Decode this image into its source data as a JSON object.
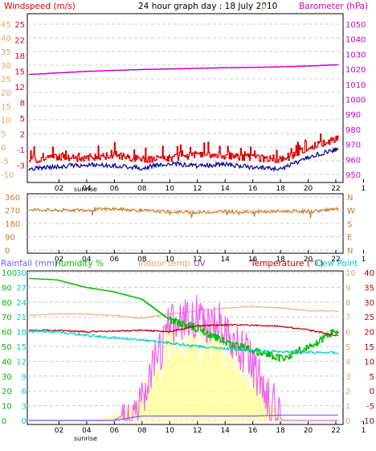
{
  "colors": {
    "windspeed": "#dd0000",
    "windavg": "#000099",
    "barometer": "#cc00cc",
    "direction": "#cc7722",
    "humidity": "#00bb00",
    "indoor": "#f0a060",
    "uv": "#9944cc",
    "temperature": "#bb0000",
    "dewpoint": "#00cccc",
    "rain": "#6666ff",
    "solar": "#ffff99",
    "uvline": "#ee66ee",
    "grid": "#cccccc"
  },
  "chart_data": [
    {
      "type": "line",
      "title": "24 hour graph day : 18 July 2010",
      "x_ticks": [
        "02",
        "04",
        "06",
        "08",
        "10",
        "12",
        "14",
        "16",
        "18",
        "20",
        "22",
        "1"
      ],
      "sunrise_label": "sunrise",
      "left_label": "Windspeed (m/s)",
      "right_label": "Barometer (hPa)",
      "center_mark": "p ... ",
      "left_axis_outer": [
        "45",
        "40",
        "35",
        "30",
        "25",
        "20",
        "15",
        "10",
        "5",
        "0",
        "-5",
        "-10"
      ],
      "left_axis_inner": [
        "25",
        "22",
        "18",
        "15",
        "12",
        "8",
        "5",
        "2",
        "-1",
        "-3"
      ],
      "right_axis": [
        "1050",
        "1040",
        "1030",
        "1020",
        "1010",
        "1000",
        "990",
        "980",
        "970",
        "960",
        "950"
      ],
      "series": [
        {
          "name": "Barometer",
          "values": [
            1016.5,
            1017.5,
            1018.5,
            1019.2,
            1019.8,
            1020.2,
            1020.6,
            1021,
            1021.2,
            1021.6,
            1022.2,
            1023
          ]
        },
        {
          "name": "Windspeed",
          "values": [
            -2,
            -1.2,
            -1.5,
            -0.8,
            -1.6,
            -1.4,
            -0.6,
            -0.9,
            -1.3,
            -1.7,
            0.8,
            2.5
          ]
        },
        {
          "name": "Wind average",
          "values": [
            -3.5,
            -3,
            -2.7,
            -2.8,
            -3.3,
            -2.4,
            -2.9,
            -2.6,
            -3.2,
            -3.5,
            -1,
            0.5
          ]
        }
      ]
    },
    {
      "type": "line",
      "x_ticks": [
        "02",
        "04",
        "06",
        "08",
        "10",
        "12",
        "14",
        "16",
        "18",
        "20",
        "22",
        "1"
      ],
      "left_axis": [
        "360",
        "270",
        "180",
        "90",
        "0"
      ],
      "right_axis": [
        "N",
        "W",
        "S",
        "E",
        "N"
      ],
      "series": [
        {
          "name": "Wind direction",
          "values": [
            275,
            268,
            272,
            280,
            268,
            258,
            255,
            262,
            258,
            262,
            262,
            278
          ]
        }
      ]
    },
    {
      "type": "line",
      "x_ticks": [
        "02",
        "04",
        "06",
        "08",
        "10",
        "12",
        "14",
        "16",
        "18",
        "20",
        "22",
        "1"
      ],
      "sunrise_label": "sunrise",
      "header_labels": {
        "rainfall": "Rainfall (mm)",
        "humidity": "Humidity %",
        "indoor": "Indoor temp",
        "uv": "UV",
        "temperature": "Temperature (°C)",
        "dewpoint": "Dew Point"
      },
      "axis_rain": [
        "30",
        "27",
        "24",
        "21",
        "18",
        "15",
        "12",
        "9",
        "6",
        "3",
        "0"
      ],
      "axis_humidity": [
        "100",
        "90",
        "80",
        "70",
        "60",
        "50",
        "40",
        "30",
        "20",
        "10",
        "0"
      ],
      "axis_uv": [
        "10",
        "9",
        "8",
        "7",
        "6",
        "5",
        "4",
        "3",
        "2",
        "1",
        "0"
      ],
      "axis_temperature": [
        "40",
        "35",
        "30",
        "25",
        "20",
        "15",
        "10",
        "5",
        "0",
        "-5",
        "-10"
      ],
      "series": [
        {
          "name": "Humidity",
          "values": [
            96,
            95,
            90,
            87,
            82,
            68,
            62,
            53,
            47,
            42,
            50,
            62
          ]
        },
        {
          "name": "Indoor temp",
          "values": [
            25.5,
            26,
            26,
            25.5,
            24.5,
            26,
            27,
            28,
            28.5,
            28,
            27,
            27
          ]
        },
        {
          "name": "Temperature",
          "values": [
            20.5,
            20.5,
            20,
            20.2,
            20.5,
            20,
            22,
            22.3,
            22.2,
            21.8,
            20.5,
            18.6
          ]
        },
        {
          "name": "Dew point",
          "values": [
            20.2,
            20,
            18.8,
            18,
            17.2,
            16.2,
            15,
            14.3,
            13.6,
            13.2,
            13.1,
            12.9
          ]
        },
        {
          "name": "UV",
          "values": [
            0,
            0,
            0,
            0,
            1,
            6.6,
            7.1,
            6.2,
            3.6,
            0,
            0,
            0
          ]
        },
        {
          "name": "Solar",
          "values": [
            0,
            0,
            0,
            0.4,
            1.6,
            6.6,
            6.8,
            6.2,
            3.3,
            0.2,
            0,
            0
          ]
        },
        {
          "name": "Rainfall",
          "values": [
            0,
            0,
            0,
            0,
            0.9,
            0.9,
            0.9,
            0.9,
            0.9,
            1.1,
            1.1,
            1.1
          ]
        }
      ]
    }
  ]
}
